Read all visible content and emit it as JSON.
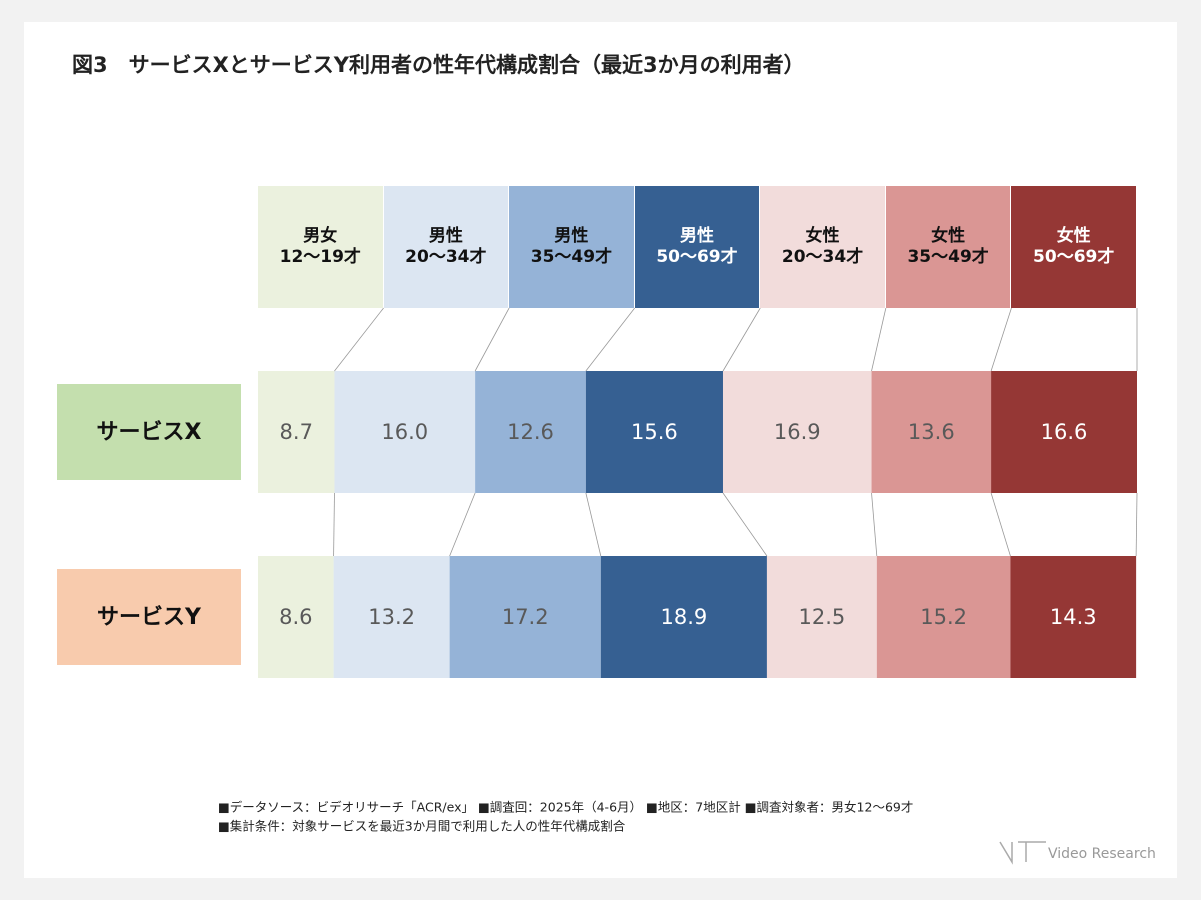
{
  "chart_data": {
    "type": "stacked-bar-100",
    "title": "図3　サービスXとサービスY利用者の性年代構成割合（最近3か月の利用者）",
    "categories": [
      "サービスX",
      "サービスY"
    ],
    "category_colors": [
      "#c4dfae",
      "#f8cbad"
    ],
    "xlim": [
      0,
      100
    ],
    "series": [
      {
        "name": "男女\n12～19才",
        "color": "#ebf1de",
        "label_color": "#595959",
        "values": [
          8.7,
          8.6
        ]
      },
      {
        "name": "男性\n20～34才",
        "color": "#dce6f2",
        "label_color": "#595959",
        "values": [
          16,
          13.2
        ],
        "value_labels": [
          "16.0",
          "13.2"
        ]
      },
      {
        "name": "男性\n35～49才",
        "color": "#95b3d7",
        "label_color": "#595959",
        "values": [
          12.6,
          17.2
        ]
      },
      {
        "name": "男性\n50～69才",
        "color": "#366092",
        "label_color": "#ffffff",
        "values": [
          15.6,
          18.9
        ]
      },
      {
        "name": "女性\n20～34才",
        "color": "#f2dcdb",
        "label_color": "#595959",
        "values": [
          16.9,
          12.5
        ]
      },
      {
        "name": "女性\n35～49才",
        "color": "#da9694",
        "label_color": "#595959",
        "values": [
          13.6,
          15.2
        ]
      },
      {
        "name": "女性\n50～69才",
        "color": "#953735",
        "label_color": "#ffffff",
        "values": [
          16.6,
          14.3
        ]
      }
    ],
    "notes": [
      "■データソース：ビデオリサーチ「ACR/ex」 ■調査回：2025年（4-6月） ■地区：7地区計 ■調査対象者：男女12～69才",
      "■集計条件：対象サービスを最近3か月間で利用した人の性年代構成割合"
    ],
    "brand": "Video Research"
  }
}
